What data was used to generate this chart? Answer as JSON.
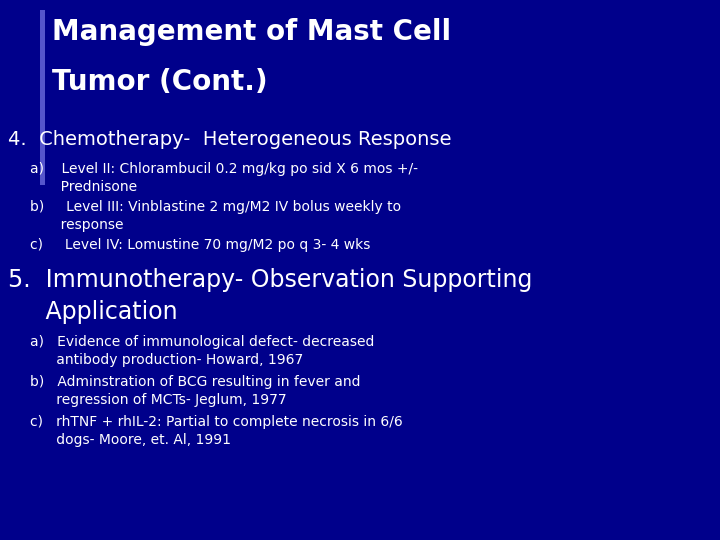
{
  "title_line1": "Management of Mast Cell",
  "title_line2": "Tumor (Cont.)",
  "background_color": "#00008B",
  "title_color": "#FFFFFF",
  "text_color": "#FFFFFF",
  "heading4": "4.  Chemotherapy-  Heterogeneous Response",
  "items4_a_l1": "a)    Level II: Chlorambucil 0.2 mg/kg po sid X 6 mos +/-",
  "items4_a_l2": "       Prednisone",
  "items4_b_l1": "b)     Level III: Vinblastine 2 mg/M2 IV bolus weekly to",
  "items4_b_l2": "       response",
  "items4_c": "c)     Level IV: Lomustine 70 mg/M2 po q 3- 4 wks",
  "heading5_line1": "5.  Immunotherapy- Observation Supporting",
  "heading5_line2": "     Application",
  "items5_a_l1": "a)   Evidence of immunological defect- decreased",
  "items5_a_l2": "      antibody production- Howard, 1967",
  "items5_b_l1": "b)   Adminstration of BCG resulting in fever and",
  "items5_b_l2": "      regression of MCTs- Jeglum, 1977",
  "items5_c_l1": "c)   rhTNF + rhIL-2: Partial to complete necrosis in 6/6",
  "items5_c_l2": "      dogs- Moore, et. Al, 1991",
  "left_bar_color": "#5555CC",
  "title_font_size": 20,
  "heading4_font_size": 14,
  "heading5_font_size": 17,
  "body_font_size": 10
}
